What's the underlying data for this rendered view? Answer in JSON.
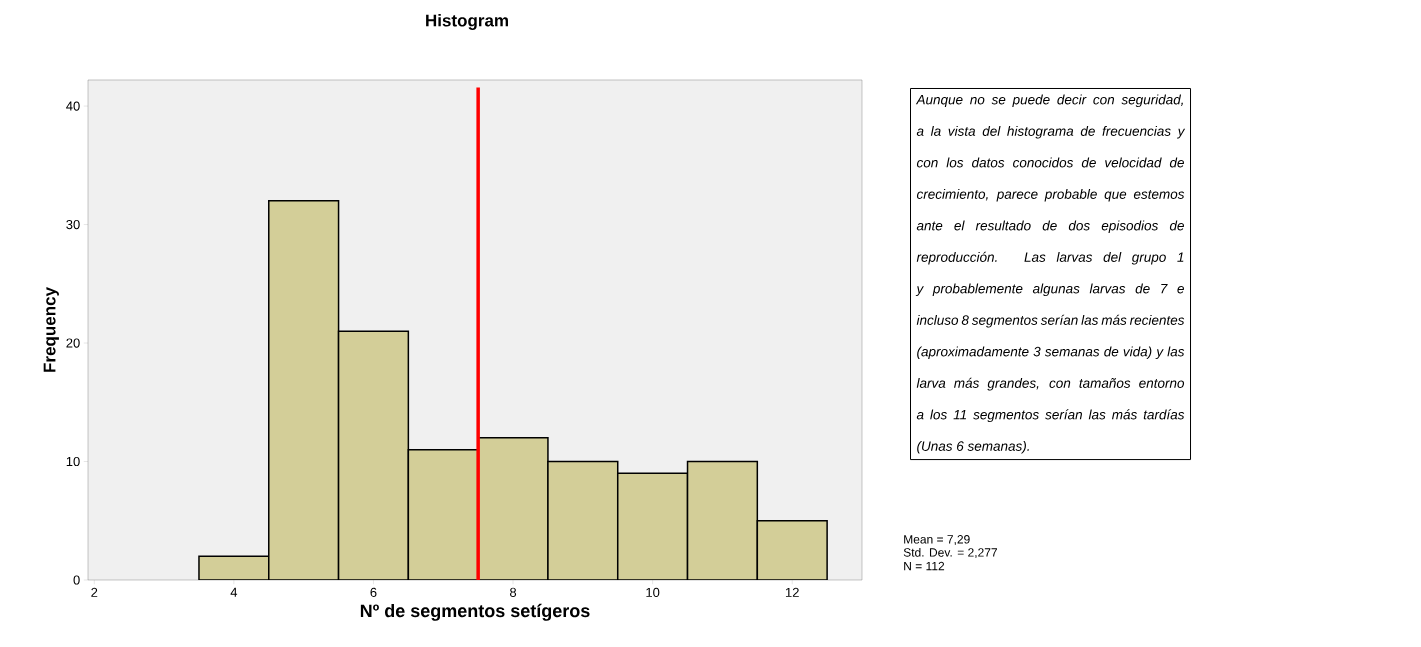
{
  "chart_data": {
    "type": "histogram",
    "title": "Histogram",
    "xlabel": "Nº de segmentos setígeros",
    "ylabel": "Frequency",
    "bins": [
      3.5,
      4.5,
      5.5,
      6.5,
      7.5,
      8.5,
      9.5,
      10.5,
      11.5,
      12.5
    ],
    "values": [
      2,
      32,
      21,
      11,
      12,
      10,
      9,
      10,
      5
    ],
    "color": "#d3ce98",
    "xlim": [
      1.91,
      13.0
    ],
    "ylim": [
      0,
      42.2
    ],
    "xticks": [
      2,
      4,
      6,
      8,
      10,
      12
    ],
    "yticks": [
      0,
      10,
      20,
      30,
      40
    ],
    "ref_lines": [
      {
        "axis": "x",
        "value": 7.5,
        "color": "#ff0000"
      }
    ],
    "annotations": [
      "Aunque no se puede decir con seguridad, a la vista del histograma de frecuencias y con los datos conocidos de velocidad de crecimiento, parece probable que estemos ante el resultado de dos episodios de reproducción. Las larvas del grupo 1 y probablemente algunas larvas de 7 e incluso 8 segmentos serían las más recientes (aproximadamente 3 semanas de vida) y las larva más grandes, con tamaños  entorno a los 11 segmentos serían las más tardías (Unas 6 semanas).",
      "Mean = 7,29",
      "Std. Dev. = 2,277",
      "N = 112"
    ]
  }
}
